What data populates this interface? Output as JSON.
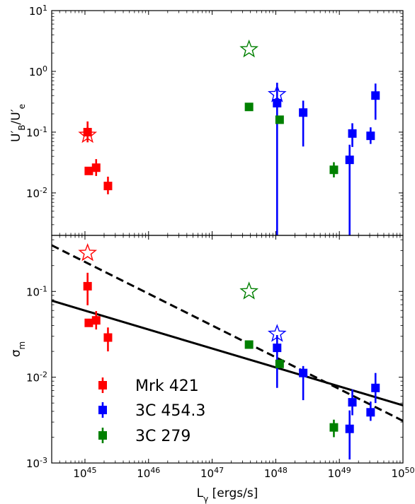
{
  "chart_data": {
    "type": "scatter",
    "x_axis": {
      "label_main": "L",
      "label_sub": "γ",
      "label_rest": " [ergs/s]",
      "scale": "log",
      "lim": [
        3e+44,
        1e+50
      ],
      "tick_exponents": [
        45,
        46,
        47,
        48,
        49,
        50
      ]
    },
    "colors": {
      "Mrk 421": "#ff0000",
      "3C 454.3": "#0000ff",
      "3C 279": "#008000"
    },
    "legend": {
      "placement": "lower-left",
      "entries": [
        "Mrk 421",
        "3C 454.3",
        "3C 279"
      ]
    },
    "panels": [
      {
        "id": "top",
        "ylabel_parts": {
          "main1": "U",
          "sub1": "B",
          "sep": "/U",
          "sub2": "e"
        },
        "y_scale": "log",
        "ylim": [
          0.002,
          10
        ],
        "y_tick_exponents": [
          -2,
          -1,
          0,
          1
        ],
        "series": [
          {
            "name": "Mrk 421",
            "color": "#ff0000",
            "points": [
              {
                "x": 1.1e+45,
                "y": 0.1,
                "ylo": 0.068,
                "yhi": 0.15
              },
              {
                "x": 1.15e+45,
                "y": 0.023,
                "ylo": 0.02,
                "yhi": 0.026
              },
              {
                "x": 1.5e+45,
                "y": 0.026,
                "ylo": 0.019,
                "yhi": 0.036
              },
              {
                "x": 2.3e+45,
                "y": 0.013,
                "ylo": 0.0095,
                "yhi": 0.0185
              }
            ]
          },
          {
            "name": "3C 454.3",
            "color": "#0000ff",
            "points": [
              {
                "x": 1.05e+48,
                "y": 0.3,
                "ylo": 0.0005,
                "yhi": 0.65
              },
              {
                "x": 2.7e+48,
                "y": 0.21,
                "ylo": 0.058,
                "yhi": 0.33
              },
              {
                "x": 1.45e+49,
                "y": 0.035,
                "ylo": 0.0007,
                "yhi": 0.062
              },
              {
                "x": 1.6e+49,
                "y": 0.095,
                "ylo": 0.057,
                "yhi": 0.14
              },
              {
                "x": 3.1e+49,
                "y": 0.087,
                "ylo": 0.064,
                "yhi": 0.12
              },
              {
                "x": 3.7e+49,
                "y": 0.4,
                "ylo": 0.16,
                "yhi": 0.63
              }
            ]
          },
          {
            "name": "3C 279",
            "color": "#008000",
            "points": [
              {
                "x": 3.8e+47,
                "y": 0.26,
                "ylo": 0.245,
                "yhi": 0.275
              },
              {
                "x": 1.15e+48,
                "y": 0.16,
                "ylo": 0.15,
                "yhi": 0.17
              },
              {
                "x": 8.2e+48,
                "y": 0.024,
                "ylo": 0.018,
                "yhi": 0.032
              }
            ]
          }
        ],
        "stars": [
          {
            "x": 1.1e+45,
            "y": 0.09,
            "color": "#ff0000"
          },
          {
            "x": 1.05e+48,
            "y": 0.42,
            "color": "#0000ff"
          },
          {
            "x": 3.8e+47,
            "y": 2.3,
            "color": "#008000"
          }
        ],
        "lines": []
      },
      {
        "id": "bottom",
        "ylabel_parts": {
          "main1": "σ",
          "sub1": "m",
          "sep": "",
          "sub2": ""
        },
        "y_scale": "log",
        "ylim": [
          0.001,
          0.45
        ],
        "y_tick_exponents": [
          -3,
          -2,
          -1
        ],
        "series": [
          {
            "name": "Mrk 421",
            "color": "#ff0000",
            "points": [
              {
                "x": 1.1e+45,
                "y": 0.115,
                "ylo": 0.069,
                "yhi": 0.165
              },
              {
                "x": 1.15e+45,
                "y": 0.043,
                "ylo": 0.039,
                "yhi": 0.048
              },
              {
                "x": 1.5e+45,
                "y": 0.046,
                "ylo": 0.036,
                "yhi": 0.059
              },
              {
                "x": 2.3e+45,
                "y": 0.029,
                "ylo": 0.02,
                "yhi": 0.038
              }
            ]
          },
          {
            "name": "3C 454.3",
            "color": "#0000ff",
            "points": [
              {
                "x": 1.05e+48,
                "y": 0.022,
                "ylo": 0.0075,
                "yhi": 0.031
              },
              {
                "x": 2.7e+48,
                "y": 0.0112,
                "ylo": 0.0054,
                "yhi": 0.0135
              },
              {
                "x": 1.45e+49,
                "y": 0.0025,
                "ylo": 0.0011,
                "yhi": 0.0041
              },
              {
                "x": 1.6e+49,
                "y": 0.0051,
                "ylo": 0.0036,
                "yhi": 0.0072
              },
              {
                "x": 3.1e+49,
                "y": 0.0039,
                "ylo": 0.0031,
                "yhi": 0.0052
              },
              {
                "x": 3.7e+49,
                "y": 0.0075,
                "ylo": 0.005,
                "yhi": 0.0112
              }
            ]
          },
          {
            "name": "3C 279",
            "color": "#008000",
            "points": [
              {
                "x": 3.8e+47,
                "y": 0.024,
                "ylo": 0.0231,
                "yhi": 0.025
              },
              {
                "x": 1.15e+48,
                "y": 0.0143,
                "ylo": 0.013,
                "yhi": 0.0156
              },
              {
                "x": 8.2e+48,
                "y": 0.0026,
                "ylo": 0.002,
                "yhi": 0.0032
              }
            ]
          }
        ],
        "stars": [
          {
            "x": 1.1e+45,
            "y": 0.28,
            "color": "#ff0000"
          },
          {
            "x": 1.05e+48,
            "y": 0.032,
            "color": "#0000ff"
          },
          {
            "x": 3.8e+47,
            "y": 0.1,
            "color": "#008000"
          }
        ],
        "lines": [
          {
            "style": "solid",
            "x1": 3e+44,
            "y1": 0.078,
            "x2": 1e+50,
            "y2": 0.0047
          },
          {
            "style": "dashed",
            "x1": 3e+44,
            "y1": 0.345,
            "x2": 1e+50,
            "y2": 0.0031
          }
        ]
      }
    ]
  }
}
